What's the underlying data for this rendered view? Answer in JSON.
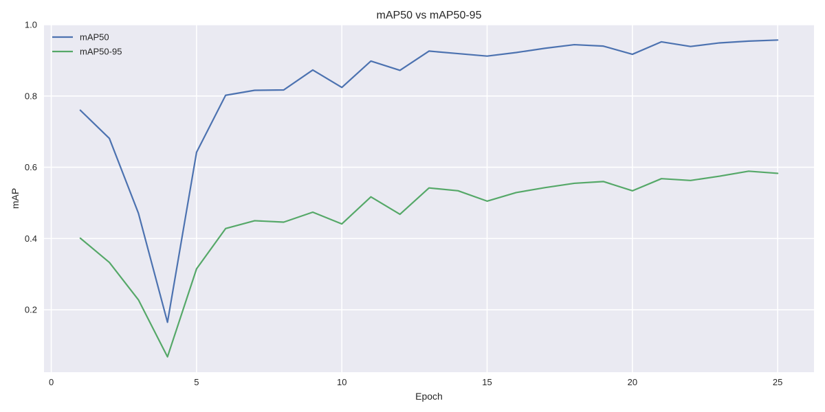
{
  "chart_data": {
    "type": "line",
    "title": "mAP50 vs mAP50-95",
    "xlabel": "Epoch",
    "ylabel": "mAP",
    "xlim": [
      -0.25,
      26.25
    ],
    "ylim": [
      0.025,
      1.0
    ],
    "xticks": [
      0,
      5,
      10,
      15,
      20,
      25
    ],
    "yticks": [
      0.2,
      0.4,
      0.6,
      0.8,
      1.0
    ],
    "ytick_labels": [
      "0.2",
      "0.4",
      "0.6",
      "0.8",
      "1.0"
    ],
    "grid": true,
    "legend_position": "top-left",
    "background_color": "#eaeaf2",
    "grid_color": "#ffffff",
    "x": [
      1,
      2,
      3,
      4,
      5,
      6,
      7,
      8,
      9,
      10,
      11,
      12,
      13,
      14,
      15,
      16,
      17,
      18,
      19,
      20,
      21,
      22,
      23,
      24,
      25
    ],
    "series": [
      {
        "name": "mAP50",
        "color": "#4c72b0",
        "values": [
          0.76,
          0.681,
          0.471,
          0.165,
          0.642,
          0.802,
          0.816,
          0.817,
          0.873,
          0.824,
          0.898,
          0.872,
          0.926,
          0.919,
          0.912,
          0.922,
          0.934,
          0.944,
          0.94,
          0.917,
          0.952,
          0.939,
          0.949,
          0.954,
          0.957
        ]
      },
      {
        "name": "mAP50-95",
        "color": "#55a868",
        "values": [
          0.401,
          0.333,
          0.228,
          0.068,
          0.315,
          0.428,
          0.45,
          0.446,
          0.474,
          0.441,
          0.517,
          0.468,
          0.542,
          0.534,
          0.505,
          0.529,
          0.543,
          0.555,
          0.56,
          0.534,
          0.568,
          0.563,
          0.575,
          0.589,
          0.583
        ]
      }
    ]
  }
}
